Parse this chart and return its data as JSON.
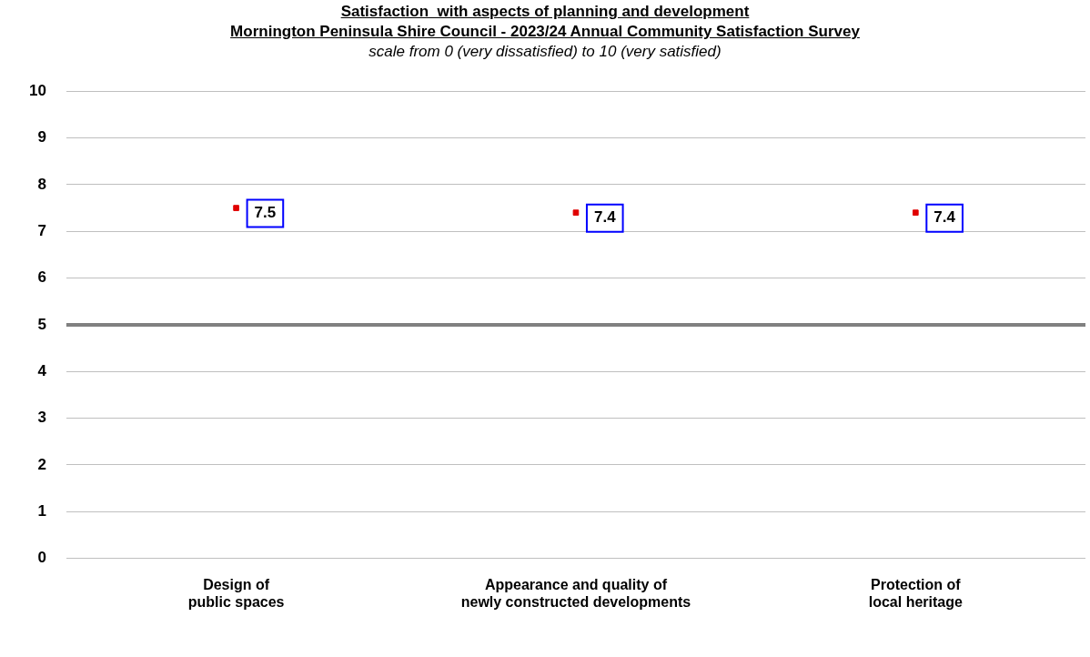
{
  "chart_data": {
    "type": "scatter",
    "title": "Satisfaction  with aspects of planning and development\nMornington Peninsula Shire Council - 2023/24 Annual Community Satisfaction Survey",
    "subtitle": "scale from 0 (very dissatisfied) to 10 (very satisfied)",
    "categories": [
      "Design of\npublic spaces",
      "Appearance and quality of\nnewly constructed developments",
      "Protection of\nlocal heritage"
    ],
    "values": [
      7.5,
      7.4,
      7.4
    ],
    "color": "#e00000",
    "ylim": [
      0,
      10
    ],
    "yticks": [
      0,
      1,
      2,
      3,
      4,
      5,
      6,
      7,
      8,
      9,
      10
    ],
    "grid": "y",
    "marker": "square",
    "data_labels": true,
    "ref_lines": [
      {
        "axis": "y",
        "value": 5,
        "color": "#808080"
      }
    ]
  }
}
